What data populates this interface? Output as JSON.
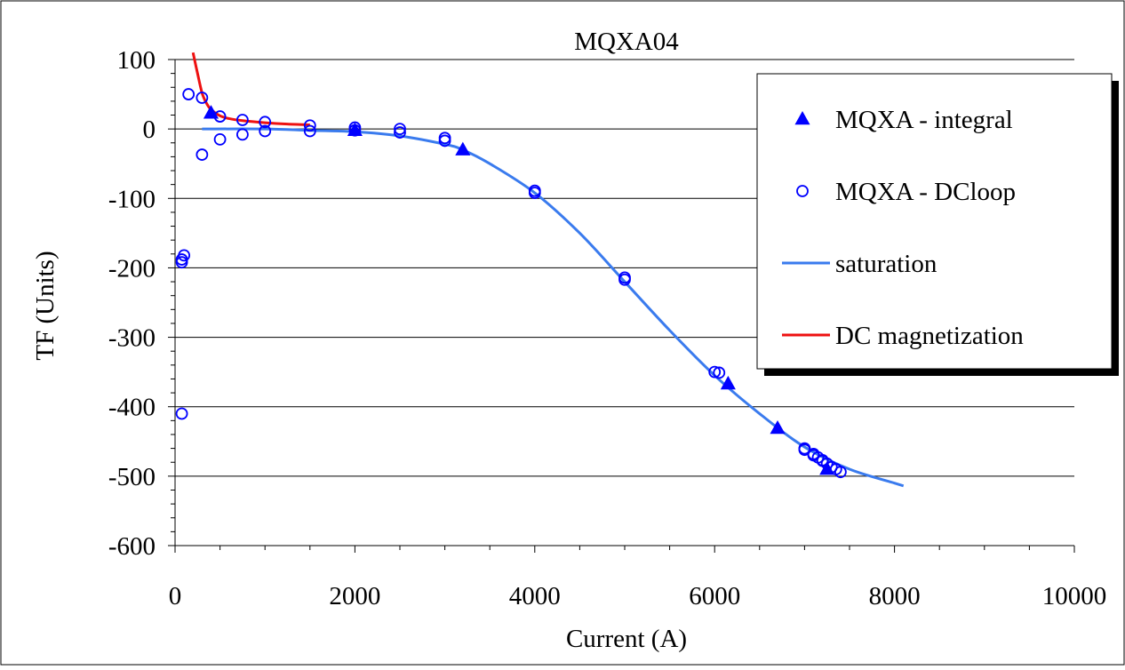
{
  "chart_data": {
    "type": "scatter",
    "title": "MQXA04",
    "xlabel": "Current (A)",
    "ylabel": "TF (Units)",
    "xlim": [
      0,
      10000
    ],
    "ylim": [
      -600,
      100
    ],
    "xticks": [
      0,
      2000,
      4000,
      6000,
      8000,
      10000
    ],
    "yticks": [
      100,
      0,
      -100,
      -200,
      -300,
      -400,
      -500,
      -600
    ],
    "grid": "horizontal",
    "legend_position": "right",
    "series": [
      {
        "name": "MQXA - integral",
        "kind": "marker",
        "marker": "triangle",
        "color": "#0000ff",
        "x": [
          400,
          2000,
          3200,
          6150,
          6700,
          7250
        ],
        "y": [
          23,
          -2,
          -30,
          -367,
          -431,
          -490
        ]
      },
      {
        "name": "MQXA - DCloop",
        "kind": "marker",
        "marker": "circle-open",
        "color": "#0000ff",
        "x": [
          150,
          300,
          500,
          750,
          1000,
          1500,
          2000,
          2500,
          3000,
          4000,
          5000,
          6050,
          7000,
          7100,
          7150,
          7200,
          7250,
          7350,
          7400,
          75,
          300,
          500,
          750,
          1000,
          1500,
          2000,
          2500,
          3000,
          4000,
          5000,
          6000,
          7000,
          7100,
          7200,
          7300,
          100,
          75,
          75
        ],
        "y": [
          50,
          45,
          18,
          13,
          10,
          5,
          2,
          0,
          -13,
          -89,
          -214,
          -351,
          -460,
          -468,
          -473,
          -477,
          -482,
          -490,
          -494,
          -192,
          -37,
          -15,
          -8,
          -3,
          -3,
          -2,
          -5,
          -17,
          -92,
          -217,
          -350,
          -462,
          -470,
          -478,
          -487,
          -182,
          -188,
          -410
        ]
      },
      {
        "name": "saturation",
        "kind": "line",
        "color": "#3a7bee",
        "x": [
          300,
          1000,
          1500,
          2000,
          2500,
          3000,
          3200,
          3500,
          4000,
          4500,
          5000,
          5500,
          6000,
          6500,
          7000,
          7500,
          8000,
          8100
        ],
        "y": [
          0,
          0,
          -2,
          -4,
          -10,
          -22,
          -30,
          -50,
          -92,
          -150,
          -220,
          -290,
          -355,
          -410,
          -458,
          -490,
          -510,
          -514
        ]
      },
      {
        "name": "DC magnetization",
        "kind": "line",
        "color": "#ee1111",
        "x": [
          200,
          250,
          300,
          350,
          400,
          500,
          600,
          750,
          1000,
          1250,
          1500
        ],
        "y": [
          110,
          80,
          52,
          37,
          28,
          19,
          15,
          12,
          9,
          7,
          6
        ]
      }
    ]
  }
}
